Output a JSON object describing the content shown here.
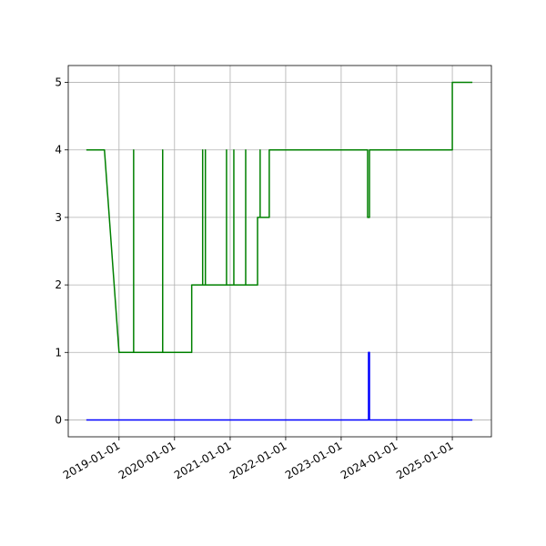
{
  "chart_data": {
    "type": "line",
    "xlim": [
      "2018-02-01",
      "2025-09-15"
    ],
    "xticks": [
      "2019-01-01",
      "2020-01-01",
      "2021-01-01",
      "2022-01-01",
      "2023-01-01",
      "2024-01-01",
      "2025-01-01"
    ],
    "ylim": [
      -0.25,
      5.25
    ],
    "yticks": [
      0,
      1,
      2,
      3,
      4,
      5
    ],
    "grid": true,
    "series": [
      {
        "color": "#008000",
        "x": [
          "2018-05-31",
          "2018-09-27",
          "2019-01-01",
          "2019-04-07",
          "2019-04-07",
          "2019-04-07",
          "2019-10-15",
          "2019-10-15",
          "2019-10-15",
          "2020-04-23",
          "2020-04-23",
          "2020-07-04",
          "2020-07-04",
          "2020-07-04",
          "2020-07-22",
          "2020-07-22",
          "2020-07-22",
          "2020-12-08",
          "2020-12-08",
          "2020-12-08",
          "2021-01-25",
          "2021-01-25",
          "2021-01-25",
          "2021-04-13",
          "2021-04-13",
          "2021-04-13",
          "2021-06-30",
          "2021-06-30",
          "2021-07-17",
          "2021-07-17",
          "2021-07-17",
          "2021-09-15",
          "2021-09-15",
          "2023-06-24",
          "2023-06-24",
          "2023-07-06",
          "2023-07-06",
          "2025-01-01",
          "2025-01-01",
          "2025-05-13"
        ],
        "values": [
          4,
          4,
          1,
          1,
          4,
          1,
          1,
          4,
          1,
          1,
          2,
          2,
          4,
          2,
          2,
          4,
          2,
          2,
          4,
          2,
          2,
          4,
          2,
          2,
          4,
          2,
          2,
          3,
          3,
          4,
          3,
          3,
          4,
          4,
          3,
          3,
          4,
          4,
          5,
          5
        ]
      },
      {
        "color": "#0000ff",
        "x": [
          "2018-05-31",
          "2023-06-30",
          "2023-06-30",
          "2023-07-06",
          "2023-07-06",
          "2025-05-13"
        ],
        "values": [
          0,
          0,
          1,
          1,
          0,
          0
        ]
      }
    ]
  }
}
